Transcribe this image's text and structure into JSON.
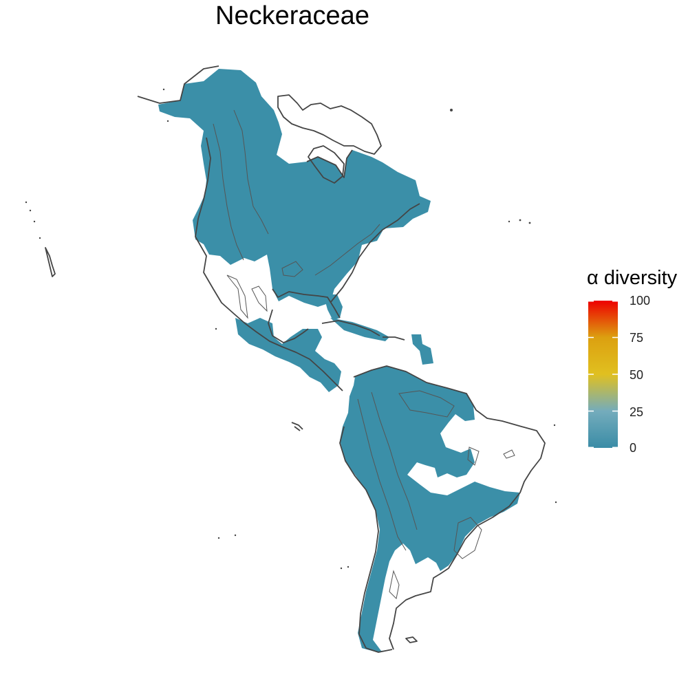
{
  "title": "Neckeraceae",
  "legend": {
    "title": "α diversity",
    "labels": [
      "100",
      "75",
      "50",
      "25",
      "0"
    ],
    "stops": [
      {
        "value": 0,
        "color": "#3a8ca6"
      },
      {
        "value": 25,
        "color": "#74acbc"
      },
      {
        "value": 50,
        "color": "#e0c020"
      },
      {
        "value": 75,
        "color": "#dca010"
      },
      {
        "value": 100,
        "color": "#ee0000"
      }
    ]
  },
  "colors": {
    "fill": "#3b8fa8",
    "outline": "#444444"
  }
}
